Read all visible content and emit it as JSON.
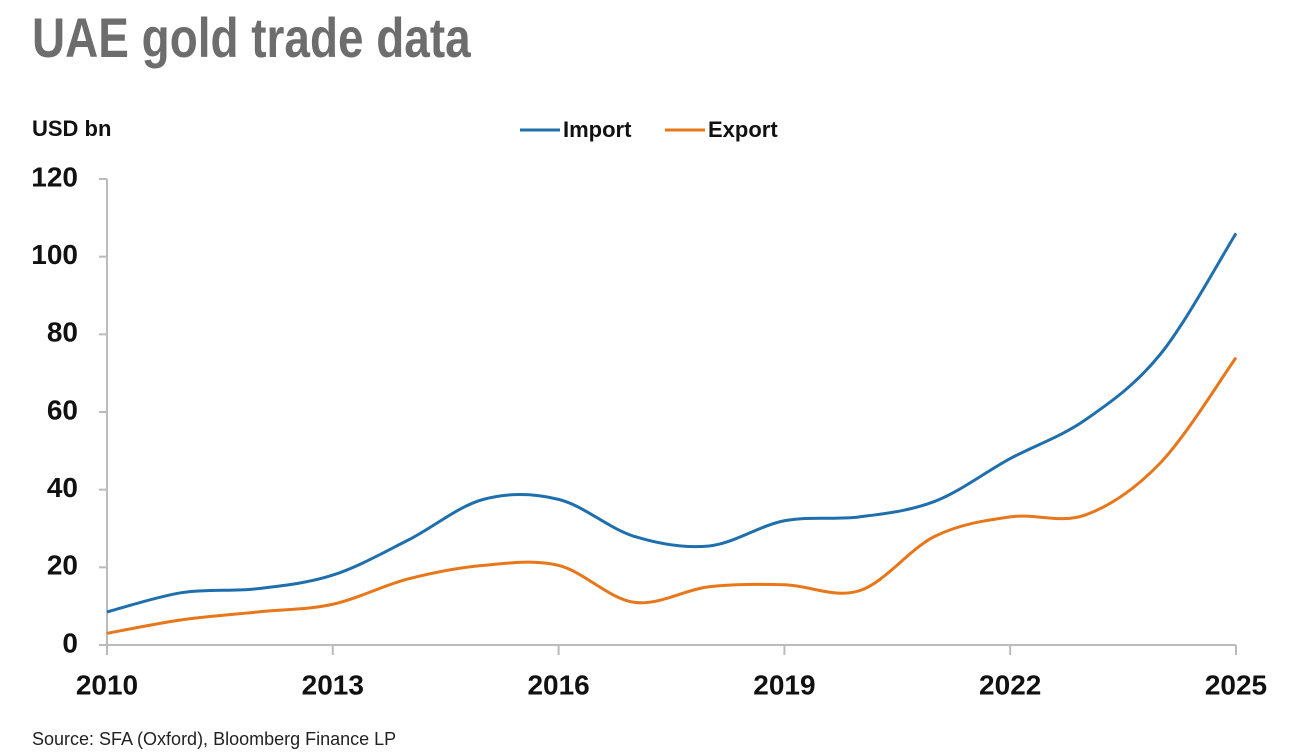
{
  "chart_data": {
    "type": "line",
    "title": "UAE gold trade data",
    "y_label": "USD bn",
    "source": "Source: SFA (Oxford), Bloomberg Finance LP",
    "x": [
      2010,
      2011,
      2012,
      2013,
      2014,
      2015,
      2016,
      2017,
      2018,
      2019,
      2020,
      2021,
      2022,
      2023,
      2024,
      2025
    ],
    "series": [
      {
        "name": "Import",
        "color": "#1f6fad",
        "values": [
          8.5,
          13.5,
          14.5,
          18,
          27,
          37.5,
          37.5,
          28,
          25.5,
          32,
          33,
          37,
          48,
          58,
          75,
          106
        ]
      },
      {
        "name": "Export",
        "color": "#e8761a",
        "values": [
          3,
          6.5,
          8.5,
          10.5,
          17,
          20.5,
          20.5,
          11,
          15,
          15.5,
          14,
          28,
          33,
          33.5,
          47,
          74
        ]
      }
    ],
    "xlim": [
      2010,
      2025
    ],
    "xticks": [
      2010,
      2013,
      2016,
      2019,
      2022,
      2025
    ],
    "ylim": [
      0,
      120
    ],
    "yticks": [
      0,
      20,
      40,
      60,
      80,
      100,
      120
    ],
    "grid": false,
    "legend": "top"
  }
}
